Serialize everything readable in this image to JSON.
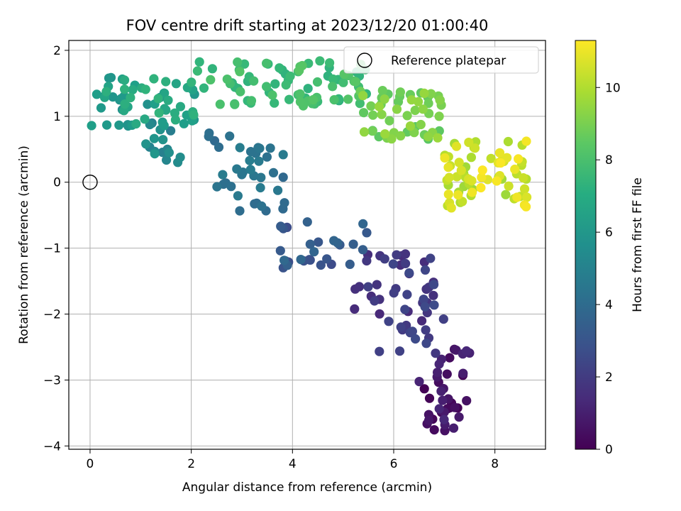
{
  "chart_data": {
    "type": "scatter",
    "title": "FOV centre drift starting at 2023/12/20 01:00:40",
    "xlabel": "Angular distance from reference (arcmin)",
    "ylabel": "Rotation from reference (arcmin)",
    "xlim": [
      -0.42,
      9.0
    ],
    "ylim": [
      -4.05,
      2.15
    ],
    "xticks": [
      0,
      2,
      4,
      6,
      8
    ],
    "yticks": [
      -4,
      -3,
      -2,
      -1,
      0,
      1,
      2
    ],
    "grid": true,
    "legend": {
      "position": "top-right",
      "entries": [
        "Reference platepar"
      ]
    },
    "reference_point": {
      "x": 0.0,
      "y": 0.0,
      "label": "Reference platepar"
    },
    "colorbar": {
      "label": "Hours from first FF file",
      "range": [
        0,
        11.3
      ],
      "ticks": [
        0,
        2,
        4,
        6,
        8,
        10
      ],
      "colormap": "viridis"
    },
    "point_groups": [
      {
        "name": "",
        "hours_range": [
          0.0,
          1.3
        ],
        "x_range": [
          6.5,
          7.5
        ],
        "y_range": [
          -3.8,
          -2.5
        ],
        "count": 40
      },
      {
        "name": "",
        "hours_range": [
          1.3,
          2.6
        ],
        "x_range": [
          5.2,
          7.0
        ],
        "y_range": [
          -2.6,
          -1.0
        ],
        "count": 55
      },
      {
        "name": "",
        "hours_range": [
          2.6,
          3.8
        ],
        "x_range": [
          3.7,
          5.6
        ],
        "y_range": [
          -1.4,
          -0.6
        ],
        "count": 28
      },
      {
        "name": "",
        "hours_range": [
          3.8,
          4.8
        ],
        "x_range": [
          2.2,
          3.9
        ],
        "y_range": [
          -0.45,
          0.85
        ],
        "count": 38
      },
      {
        "name": "",
        "hours_range": [
          4.8,
          6.0
        ],
        "x_range": [
          1.1,
          1.9
        ],
        "y_range": [
          0.3,
          0.9
        ],
        "count": 16
      },
      {
        "name": "",
        "hours_range": [
          5.6,
          7.4
        ],
        "x_range": [
          0.0,
          2.1
        ],
        "y_range": [
          0.85,
          1.6
        ],
        "count": 60
      },
      {
        "name": "",
        "hours_range": [
          7.2,
          8.3
        ],
        "x_range": [
          2.1,
          5.5
        ],
        "y_range": [
          1.15,
          1.85
        ],
        "count": 80
      },
      {
        "name": "",
        "hours_range": [
          8.3,
          9.6
        ],
        "x_range": [
          5.3,
          7.0
        ],
        "y_range": [
          0.65,
          1.4
        ],
        "count": 55
      },
      {
        "name": "",
        "hours_range": [
          9.6,
          11.3
        ],
        "x_range": [
          7.0,
          8.65
        ],
        "y_range": [
          -0.42,
          0.7
        ],
        "count": 70
      }
    ]
  }
}
